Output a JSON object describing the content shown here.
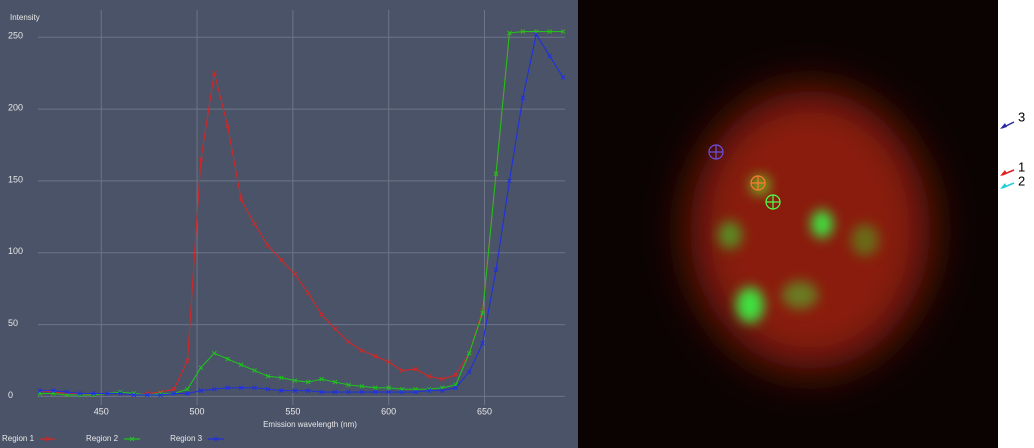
{
  "chart_data": {
    "type": "line",
    "y_label": "Intensity",
    "x_label": "Emission wavelength (nm)",
    "x": [
      418,
      425,
      432,
      439,
      446,
      453,
      460,
      467,
      474,
      481,
      488,
      495,
      502,
      509,
      516,
      523,
      530,
      537,
      544,
      551,
      558,
      565,
      572,
      579,
      586,
      593,
      600,
      607,
      614,
      621,
      628,
      635,
      642,
      649,
      656,
      663,
      670,
      677,
      684,
      691
    ],
    "series": [
      {
        "name": "Region 1",
        "color": "#d02828",
        "values": [
          4,
          3,
          2,
          2,
          1,
          2,
          2,
          1,
          2,
          3,
          5,
          25,
          165,
          225,
          188,
          137,
          120,
          105,
          95,
          85,
          72,
          57,
          47,
          38,
          32,
          28,
          24,
          18,
          19,
          14,
          12,
          15,
          30,
          60,
          155,
          253,
          254,
          254,
          254,
          254
        ]
      },
      {
        "name": "Region 2",
        "color": "#20c020",
        "values": [
          2,
          2,
          1,
          1,
          1,
          2,
          3,
          2,
          1,
          2,
          2,
          5,
          20,
          30,
          26,
          22,
          18,
          14,
          13,
          11,
          10,
          12,
          10,
          8,
          7,
          6,
          6,
          5,
          5,
          5,
          6,
          8,
          30,
          58,
          155,
          253,
          254,
          254,
          254,
          254
        ]
      },
      {
        "name": "Region 3",
        "color": "#2030e0",
        "values": [
          4,
          4,
          3,
          2,
          2,
          2,
          2,
          1,
          1,
          1,
          2,
          2,
          4,
          5,
          6,
          6,
          6,
          5,
          4,
          4,
          4,
          3,
          3,
          3,
          3,
          3,
          3,
          3,
          3,
          4,
          4,
          6,
          17,
          37,
          88,
          150,
          208,
          252,
          237,
          222
        ]
      }
    ],
    "xlim": [
      417,
      692
    ],
    "ylim": [
      -6,
      269
    ],
    "xticks": [
      450,
      500,
      550,
      600,
      650
    ],
    "yticks": [
      0,
      50,
      100,
      150,
      200,
      250
    ],
    "grid": true
  },
  "image_labels": [
    {
      "label": "3"
    },
    {
      "label": "1"
    },
    {
      "label": "2"
    }
  ]
}
